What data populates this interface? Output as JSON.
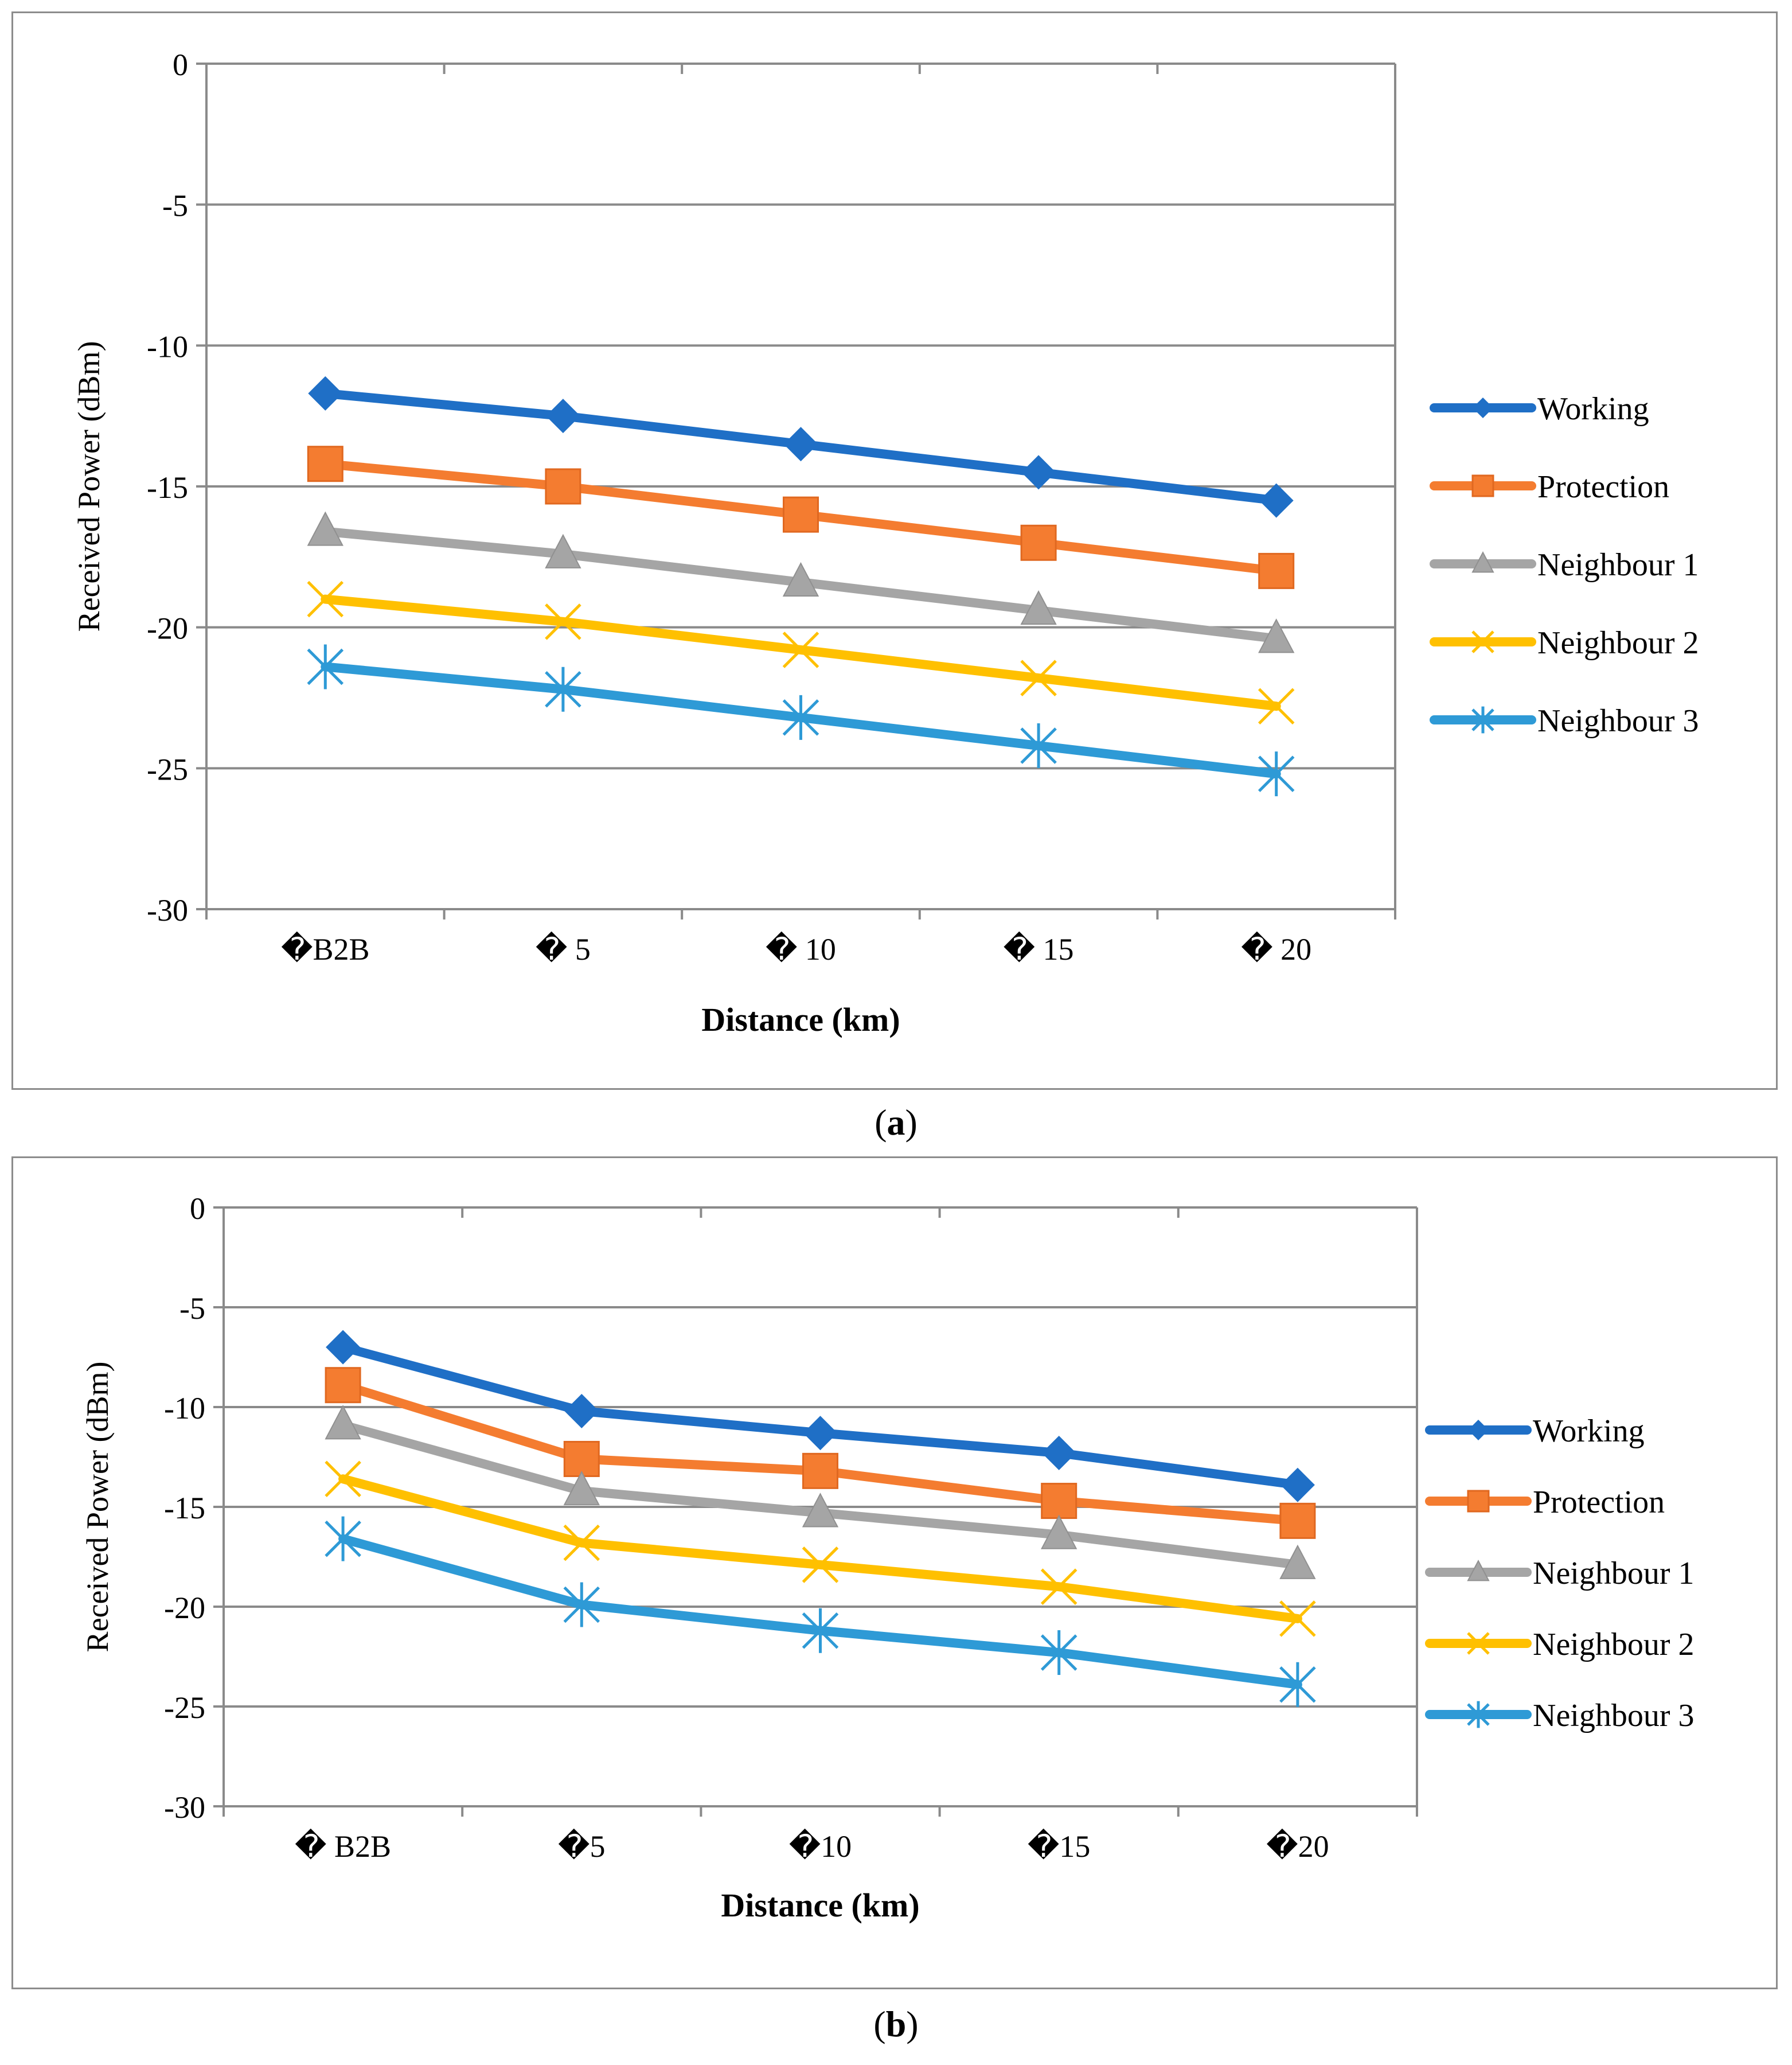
{
  "chart_data": [
    {
      "type": "line",
      "panel": "a",
      "caption_letter": "a",
      "categories": [
        "�B2B",
        "� 5",
        "� 10",
        "� 15",
        "� 20"
      ],
      "xlabel": "Distance (km)",
      "ylabel": "Received Power (dBm)",
      "ylim": [
        -30,
        0
      ],
      "yticks": [
        0,
        -5,
        -10,
        -15,
        -20,
        -25,
        -30
      ],
      "grid": true,
      "legend": "right",
      "series": [
        {
          "name": "Working",
          "color": "#1f6fc6",
          "marker": "diamond",
          "values": [
            -11.7,
            -12.5,
            -13.5,
            -14.5,
            -15.5
          ]
        },
        {
          "name": "Protection",
          "color": "#f47c30",
          "marker": "square",
          "values": [
            -14.2,
            -15.0,
            -16.0,
            -17.0,
            -18.0
          ]
        },
        {
          "name": "Neighbour 1",
          "color": "#a5a5a5",
          "marker": "triangle",
          "values": [
            -16.6,
            -17.4,
            -18.4,
            -19.4,
            -20.4
          ]
        },
        {
          "name": "Neighbour 2",
          "color": "#ffc000",
          "marker": "x",
          "values": [
            -19.0,
            -19.8,
            -20.8,
            -21.8,
            -22.8
          ]
        },
        {
          "name": "Neighbour 3",
          "color": "#2e9ad6",
          "marker": "star",
          "values": [
            -21.4,
            -22.2,
            -23.2,
            -24.2,
            -25.2
          ]
        }
      ]
    },
    {
      "type": "line",
      "panel": "b",
      "caption_letter": "b",
      "categories": [
        "� B2B",
        "�5",
        "�10",
        "�15",
        "�20"
      ],
      "xlabel": "Distance (km)",
      "ylabel": "Received Power (dBm)",
      "ylim": [
        -30,
        0
      ],
      "yticks": [
        0,
        -5,
        -10,
        -15,
        -20,
        -25,
        -30
      ],
      "grid": true,
      "legend": "right",
      "series": [
        {
          "name": "Working",
          "color": "#1f6fc6",
          "marker": "diamond",
          "values": [
            -7.0,
            -10.2,
            -11.3,
            -12.3,
            -13.9
          ]
        },
        {
          "name": "Protection",
          "color": "#f47c30",
          "marker": "square",
          "values": [
            -8.9,
            -12.6,
            -13.2,
            -14.7,
            -15.7
          ]
        },
        {
          "name": "Neighbour 1",
          "color": "#a5a5a5",
          "marker": "triangle",
          "values": [
            -10.9,
            -14.2,
            -15.3,
            -16.4,
            -17.9
          ]
        },
        {
          "name": "Neighbour 2",
          "color": "#ffc000",
          "marker": "x",
          "values": [
            -13.6,
            -16.8,
            -17.9,
            -19.0,
            -20.6
          ]
        },
        {
          "name": "Neighbour 3",
          "color": "#2e9ad6",
          "marker": "star",
          "values": [
            -16.6,
            -19.9,
            -21.2,
            -22.3,
            -23.9
          ]
        }
      ]
    }
  ]
}
